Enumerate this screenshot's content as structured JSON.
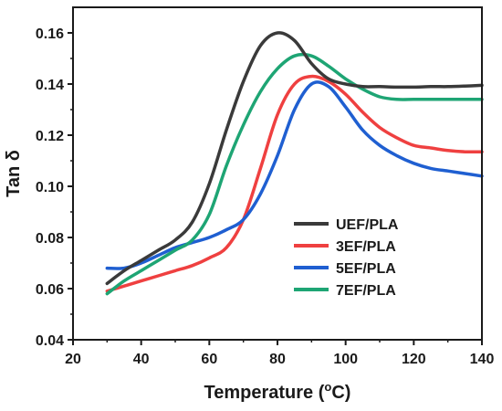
{
  "chart_data": {
    "type": "line",
    "title": "",
    "xlabel": "Temperature (",
    "xlabel_sup": "o",
    "xlabel_end": "C)",
    "ylabel": "Tan δ",
    "xlim": [
      20,
      140
    ],
    "ylim": [
      0.04,
      0.17
    ],
    "x_ticks": [
      "20",
      "40",
      "60",
      "80",
      "100",
      "120",
      "140"
    ],
    "y_ticks": [
      "0.04",
      "0.06",
      "0.08",
      "0.10",
      "0.12",
      "0.14",
      "0.16"
    ],
    "grid": false,
    "legend_position": "center-right",
    "series": [
      {
        "name": "UEF/PLA",
        "color": "#3a3a3a",
        "x": [
          30,
          35,
          40,
          45,
          50,
          55,
          60,
          65,
          70,
          75,
          80,
          85,
          90,
          95,
          100,
          105,
          110,
          115,
          120,
          125,
          130,
          135,
          140
        ],
        "y": [
          0.062,
          0.067,
          0.071,
          0.075,
          0.079,
          0.086,
          0.101,
          0.122,
          0.141,
          0.155,
          0.16,
          0.157,
          0.148,
          0.142,
          0.14,
          0.139,
          0.139,
          0.1388,
          0.1388,
          0.139,
          0.139,
          0.1392,
          0.1395
        ]
      },
      {
        "name": "3EF/PLA",
        "color": "#ef4040",
        "x": [
          30,
          35,
          40,
          45,
          50,
          55,
          60,
          65,
          70,
          75,
          80,
          85,
          90,
          95,
          100,
          105,
          110,
          115,
          120,
          125,
          130,
          135,
          140
        ],
        "y": [
          0.059,
          0.061,
          0.063,
          0.065,
          0.067,
          0.069,
          0.072,
          0.076,
          0.087,
          0.107,
          0.128,
          0.14,
          0.143,
          0.141,
          0.136,
          0.129,
          0.123,
          0.119,
          0.116,
          0.115,
          0.114,
          0.1135,
          0.1135
        ]
      },
      {
        "name": "5EF/PLA",
        "color": "#1f5fd1",
        "x": [
          30,
          35,
          40,
          45,
          50,
          55,
          60,
          65,
          70,
          75,
          80,
          85,
          90,
          95,
          100,
          105,
          110,
          115,
          120,
          125,
          130,
          135,
          140
        ],
        "y": [
          0.068,
          0.068,
          0.07,
          0.073,
          0.076,
          0.078,
          0.08,
          0.083,
          0.087,
          0.097,
          0.112,
          0.13,
          0.14,
          0.139,
          0.131,
          0.122,
          0.116,
          0.112,
          0.109,
          0.107,
          0.106,
          0.105,
          0.104
        ]
      },
      {
        "name": "7EF/PLA",
        "color": "#1ea574",
        "x": [
          30,
          35,
          40,
          45,
          50,
          55,
          60,
          65,
          70,
          75,
          80,
          85,
          90,
          95,
          100,
          105,
          110,
          115,
          120,
          125,
          130,
          135,
          140
        ],
        "y": [
          0.058,
          0.063,
          0.067,
          0.071,
          0.075,
          0.079,
          0.089,
          0.108,
          0.124,
          0.137,
          0.146,
          0.151,
          0.151,
          0.147,
          0.142,
          0.138,
          0.135,
          0.134,
          0.134,
          0.134,
          0.134,
          0.134,
          0.134
        ]
      }
    ]
  }
}
